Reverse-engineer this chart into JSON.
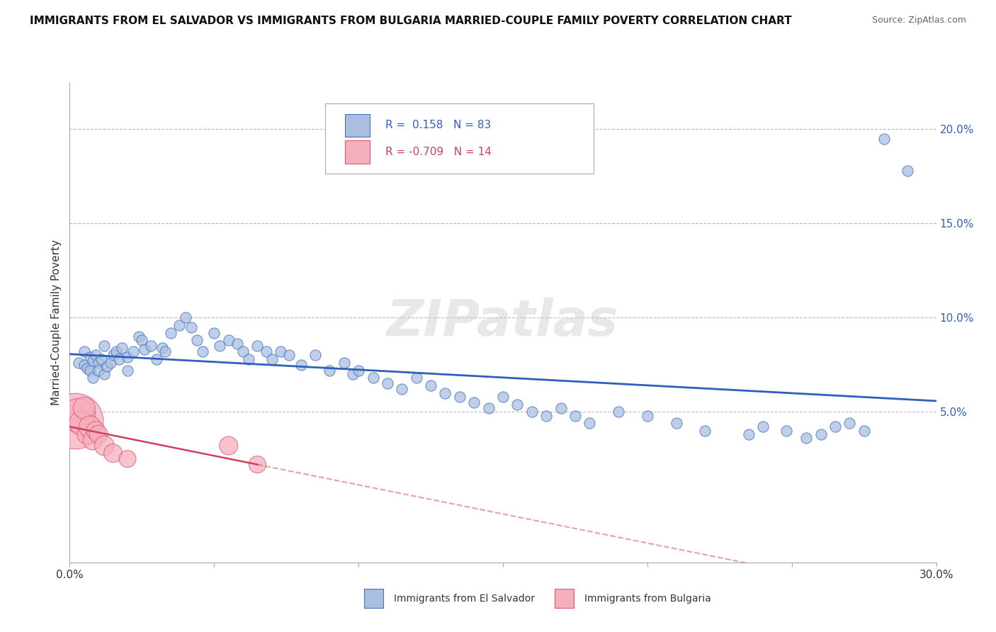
{
  "title": "IMMIGRANTS FROM EL SALVADOR VS IMMIGRANTS FROM BULGARIA MARRIED-COUPLE FAMILY POVERTY CORRELATION CHART",
  "source": "Source: ZipAtlas.com",
  "ylabel": "Married-Couple Family Poverty",
  "xlim": [
    0.0,
    0.3
  ],
  "ylim": [
    -0.03,
    0.225
  ],
  "xtick_positions": [
    0.0,
    0.05,
    0.1,
    0.15,
    0.2,
    0.25,
    0.3
  ],
  "yticks_right": [
    0.05,
    0.1,
    0.15,
    0.2
  ],
  "ytick_labels_right": [
    "5.0%",
    "10.0%",
    "15.0%",
    "20.0%"
  ],
  "legend_el_salvador": "Immigrants from El Salvador",
  "legend_bulgaria": "Immigrants from Bulgaria",
  "r_el_salvador": 0.158,
  "n_el_salvador": 83,
  "r_bulgaria": -0.709,
  "n_bulgaria": 14,
  "color_es_fill": "#AABFDF",
  "color_es_edge": "#4472C4",
  "color_bg_fill": "#F5AFBC",
  "color_bg_edge": "#E05575",
  "trendline_es": "#3060BB",
  "trendline_bg": "#D04060",
  "watermark": "ZIPatlas",
  "background_color": "#FFFFFF",
  "grid_color": "#BBBBBB",
  "es_x": [
    0.003,
    0.005,
    0.005,
    0.006,
    0.007,
    0.007,
    0.008,
    0.008,
    0.009,
    0.01,
    0.01,
    0.011,
    0.012,
    0.012,
    0.013,
    0.014,
    0.015,
    0.016,
    0.017,
    0.018,
    0.02,
    0.02,
    0.022,
    0.024,
    0.025,
    0.026,
    0.028,
    0.03,
    0.032,
    0.033,
    0.035,
    0.038,
    0.04,
    0.042,
    0.044,
    0.046,
    0.05,
    0.052,
    0.055,
    0.058,
    0.06,
    0.062,
    0.065,
    0.068,
    0.07,
    0.073,
    0.076,
    0.08,
    0.085,
    0.09,
    0.095,
    0.098,
    0.1,
    0.105,
    0.11,
    0.115,
    0.12,
    0.125,
    0.13,
    0.135,
    0.14,
    0.145,
    0.15,
    0.155,
    0.16,
    0.165,
    0.17,
    0.175,
    0.18,
    0.19,
    0.2,
    0.21,
    0.22,
    0.235,
    0.24,
    0.248,
    0.255,
    0.26,
    0.265,
    0.27,
    0.275,
    0.282,
    0.29
  ],
  "es_y": [
    0.076,
    0.082,
    0.075,
    0.073,
    0.079,
    0.072,
    0.077,
    0.068,
    0.08,
    0.076,
    0.072,
    0.078,
    0.085,
    0.07,
    0.074,
    0.076,
    0.08,
    0.082,
    0.078,
    0.084,
    0.079,
    0.072,
    0.082,
    0.09,
    0.088,
    0.083,
    0.085,
    0.078,
    0.084,
    0.082,
    0.092,
    0.096,
    0.1,
    0.095,
    0.088,
    0.082,
    0.092,
    0.085,
    0.088,
    0.086,
    0.082,
    0.078,
    0.085,
    0.082,
    0.078,
    0.082,
    0.08,
    0.075,
    0.08,
    0.072,
    0.076,
    0.07,
    0.072,
    0.068,
    0.065,
    0.062,
    0.068,
    0.064,
    0.06,
    0.058,
    0.055,
    0.052,
    0.058,
    0.054,
    0.05,
    0.048,
    0.052,
    0.048,
    0.044,
    0.05,
    0.048,
    0.044,
    0.04,
    0.038,
    0.042,
    0.04,
    0.036,
    0.038,
    0.042,
    0.044,
    0.04,
    0.195,
    0.178
  ],
  "bg_x": [
    0.002,
    0.003,
    0.004,
    0.005,
    0.006,
    0.007,
    0.008,
    0.009,
    0.01,
    0.012,
    0.015,
    0.02,
    0.055,
    0.065
  ],
  "bg_y": [
    0.045,
    0.048,
    0.044,
    0.052,
    0.038,
    0.042,
    0.035,
    0.04,
    0.038,
    0.032,
    0.028,
    0.025,
    0.032,
    0.022
  ],
  "bg_size_large": 0.002,
  "es_size": 120,
  "bg_sizes": [
    3200,
    1200,
    600,
    500,
    400,
    500,
    400,
    350,
    350,
    400,
    350,
    300,
    350,
    300
  ]
}
